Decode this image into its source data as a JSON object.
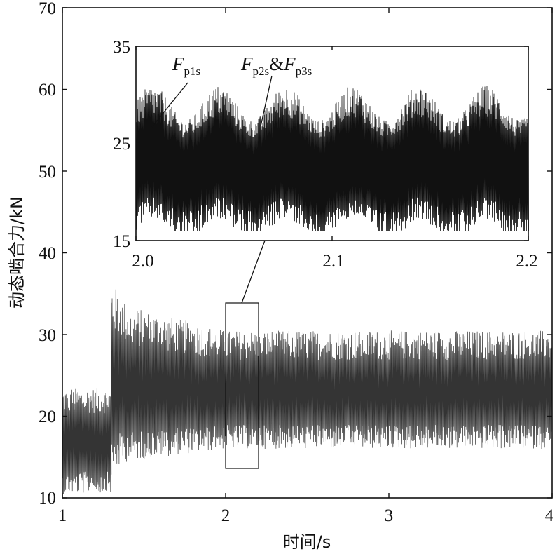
{
  "chart_data": [
    {
      "type": "line",
      "xlabel": "时间/s",
      "ylabel": "动态啮合力/kN",
      "xlim": [
        1,
        4
      ],
      "ylim": [
        10,
        70
      ],
      "xticks": [
        "1",
        "2",
        "3",
        "4"
      ],
      "yticks": [
        "10",
        "20",
        "30",
        "40",
        "50",
        "60",
        "70"
      ],
      "grid": false,
      "series": [
        {
          "segments": [
            {
              "x": [
                1.0,
                1.3
              ],
              "y_mean": 16.5,
              "y_min": 10.5,
              "y_max": 23.5
            },
            {
              "x": [
                1.3,
                1.4
              ],
              "y_mean": 23.0,
              "y_min": 13.0,
              "y_max": 36.5
            },
            {
              "x": [
                1.4,
                2.0
              ],
              "y_mean": 22.5,
              "y_min": 14.5,
              "y_max": 33.5
            },
            {
              "x": [
                2.0,
                4.0
              ],
              "y_mean": 22.5,
              "y_min": 16.0,
              "y_max": 30.5
            }
          ]
        }
      ],
      "zoom_box": {
        "x": [
          2.0,
          2.2
        ],
        "y": [
          13.5,
          34.0
        ]
      }
    },
    {
      "type": "line",
      "xlim": [
        2.0,
        2.2
      ],
      "ylim": [
        15,
        35
      ],
      "xticks": [
        "2.0",
        "2.1",
        "2.2"
      ],
      "yticks": [
        "15",
        "25",
        "35"
      ],
      "y_mean": 22.8,
      "y_min": 16.0,
      "y_max": 31.0,
      "envelope_period": 0.034,
      "legend": [
        {
          "main": "F",
          "sub": "p1s"
        },
        {
          "main": "F",
          "sub": "p2s",
          "joiner": "&",
          "main2": "F",
          "sub2": "p3s"
        }
      ]
    }
  ]
}
